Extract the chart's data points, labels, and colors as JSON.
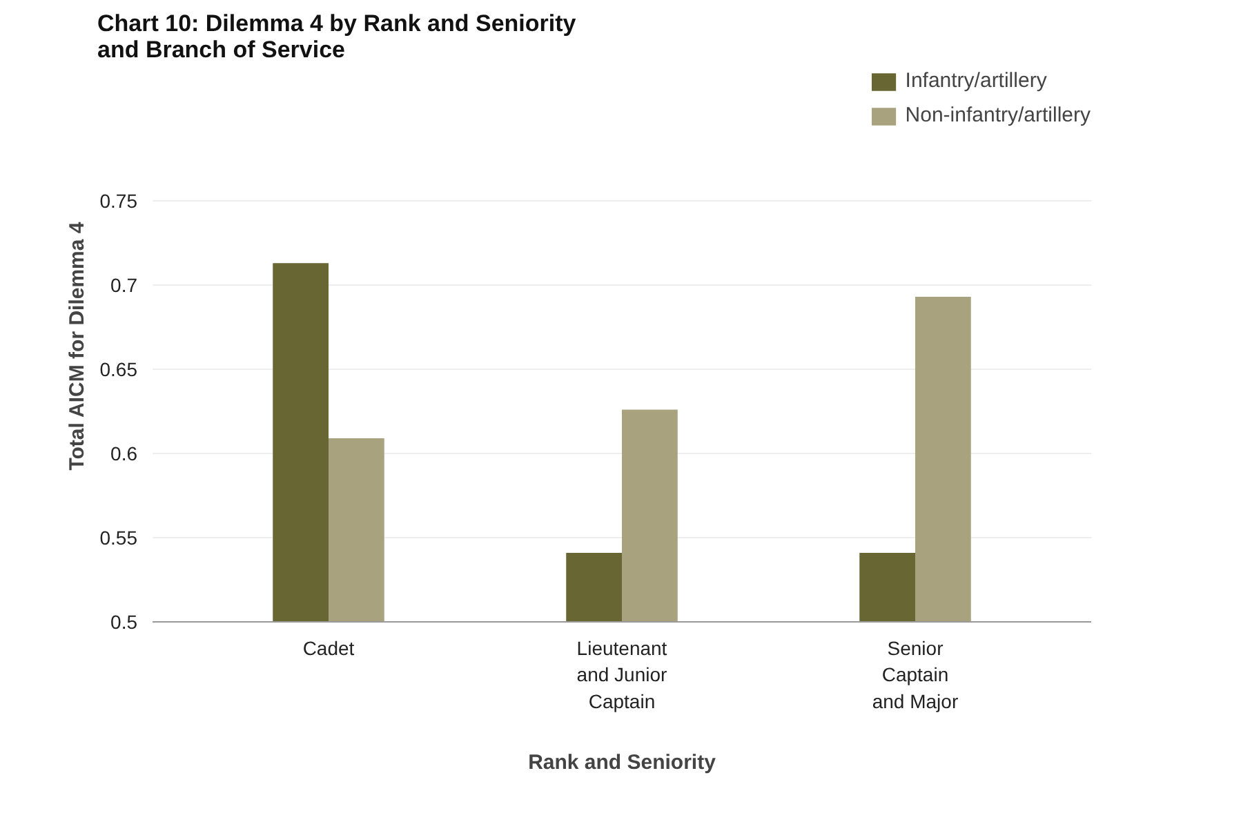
{
  "chart_data": {
    "type": "bar",
    "title": "Chart 10: Dilemma 4 by Rank and Seniority and Branch of Service",
    "xlabel": "Rank and Seniority",
    "ylabel": "Total AICM for Dilemma 4",
    "categories": [
      "Cadet",
      "Lieutenant and Junior Captain",
      "Senior Captain and Major"
    ],
    "series": [
      {
        "name": "Infantry/artillery",
        "color": "#686633",
        "values": [
          0.713,
          0.541,
          0.541
        ]
      },
      {
        "name": "Non-infantry/artillery",
        "color": "#a8a27e",
        "values": [
          0.609,
          0.626,
          0.693
        ]
      }
    ],
    "ylim": [
      0.5,
      0.75
    ],
    "yticks": [
      0.5,
      0.55,
      0.6,
      0.65,
      0.7,
      0.75
    ],
    "grid": "y",
    "legend": "top right"
  }
}
